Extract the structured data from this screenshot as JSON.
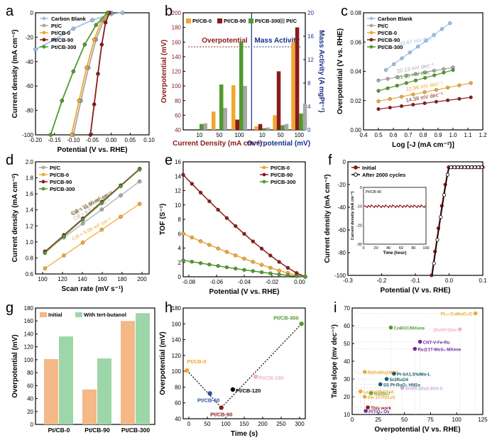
{
  "colors": {
    "carbon": "#9cc3ea",
    "ptc": "#a8a8a8",
    "cb0": "#f0a830",
    "cb90": "#8b1a1a",
    "cb300": "#4f9a2e",
    "blue": "#1a2f8a",
    "darkred": "#8b1a1a"
  },
  "chart_data": [
    {
      "panel": "a",
      "type": "line",
      "xlabel": "Potential (V vs. RHE)",
      "ylabel": "Current density (mA cm⁻²)",
      "xlim": [
        -0.2,
        0.1
      ],
      "ylim": [
        -100,
        0
      ],
      "xticks": [
        "-0.20",
        "-0.15",
        "-0.10",
        "-0.05",
        "0.00",
        "0.05",
        "0.10"
      ],
      "yticks": [
        "-100",
        "-80",
        "-60",
        "-40",
        "-20",
        "0"
      ],
      "series": [
        {
          "name": "Carbon Blank",
          "color": "#9cc3ea",
          "points": [
            [
              -0.2,
              -30
            ],
            [
              -0.15,
              -22
            ],
            [
              -0.1,
              -13
            ],
            [
              -0.05,
              -6
            ],
            [
              0,
              -1
            ],
            [
              0.03,
              0
            ]
          ]
        },
        {
          "name": "Pt/C",
          "color": "#a8a8a8",
          "points": [
            [
              -0.1,
              -100
            ],
            [
              -0.08,
              -72
            ],
            [
              -0.06,
              -45
            ],
            [
              -0.04,
              -22
            ],
            [
              -0.02,
              -6
            ],
            [
              0,
              0
            ]
          ]
        },
        {
          "name": "Pt/CB-0",
          "color": "#f0a830",
          "points": [
            [
              -0.105,
              -100
            ],
            [
              -0.085,
              -72
            ],
            [
              -0.065,
              -45
            ],
            [
              -0.045,
              -22
            ],
            [
              -0.025,
              -6
            ],
            [
              -0.005,
              0
            ]
          ]
        },
        {
          "name": "Pt/CB-90",
          "color": "#8b1a1a",
          "points": [
            [
              -0.055,
              -100
            ],
            [
              -0.045,
              -75
            ],
            [
              -0.035,
              -50
            ],
            [
              -0.025,
              -26
            ],
            [
              -0.015,
              -8
            ],
            [
              -0.005,
              0
            ]
          ]
        },
        {
          "name": "Pt/CB-300",
          "color": "#4f9a2e",
          "points": [
            [
              -0.16,
              -100
            ],
            [
              -0.13,
              -72
            ],
            [
              -0.1,
              -48
            ],
            [
              -0.07,
              -26
            ],
            [
              -0.04,
              -10
            ],
            [
              -0.01,
              0
            ]
          ]
        }
      ]
    },
    {
      "panel": "b",
      "type": "bar",
      "ylabel": "Overpotential (mV)",
      "ylabel_right": "Mass Activity (A mgPt⁻¹)",
      "xlabel_left": "Current Density (mA cm⁻²)",
      "xlabel_right": "Overpotential (mV)",
      "ylim": [
        40,
        200
      ],
      "ylim_right": [
        0,
        20
      ],
      "yticks": [
        "40",
        "60",
        "80",
        "100",
        "120",
        "140",
        "160",
        "180",
        "200"
      ],
      "yticks_right": [
        "0",
        "4",
        "8",
        "12",
        "16",
        "20"
      ],
      "annot_left": "Overpotential",
      "annot_right": "Mass Activity",
      "legend": [
        "Pt/CB-0",
        "Pt/CB-90",
        "Pt/CB-300",
        "Pt/C"
      ],
      "categories_left": [
        "10",
        "50",
        "100"
      ],
      "series_left": [
        {
          "name": "Pt/CB-0",
          "values": [
            37,
            65,
            101
          ]
        },
        {
          "name": "Pt/CB-90",
          "values": [
            26,
            40,
            54
          ]
        },
        {
          "name": "Pt/CB-300",
          "values": [
            48,
            102,
            160
          ]
        },
        {
          "name": "Pt/C",
          "values": [
            49,
            70,
            100
          ]
        }
      ],
      "categories_right": [
        "10",
        "50",
        "100"
      ],
      "series_right": [
        {
          "name": "Pt/CB-0",
          "values": [
            0.6,
            2.5,
            15
          ]
        },
        {
          "name": "Pt/CB-90",
          "values": [
            1.0,
            10,
            17.5
          ]
        },
        {
          "name": "Pt/CB-300",
          "values": [
            0.3,
            0.8,
            2.8
          ]
        },
        {
          "name": "Pt/C",
          "values": [
            0.4,
            1.0,
            4.5
          ]
        }
      ]
    },
    {
      "panel": "c",
      "type": "scatter",
      "xlabel": "Log [-J (mA cm⁻²)]",
      "ylabel": "Overpotential (V vs. RHE)",
      "xlim": [
        0.4,
        1.2
      ],
      "ylim": [
        0,
        0.09
      ],
      "xticks": [
        "0.4",
        "0.5",
        "0.6",
        "0.7",
        "0.8",
        "0.9",
        "1.0",
        "1.1",
        "1.2"
      ],
      "yticks": [
        "0.00",
        "0.02",
        "0.04",
        "0.06",
        "0.08"
      ],
      "series": [
        {
          "name": "Carbon Blank",
          "color": "#9cc3ea",
          "x0": 0.55,
          "x1": 0.98,
          "y0": 0.046,
          "y1": 0.082,
          "label": "83.67 mV dec⁻¹"
        },
        {
          "name": "Pt/C",
          "color": "#a8a8a8",
          "x0": 0.5,
          "x1": 1.0,
          "y0": 0.038,
          "y1": 0.048,
          "label": "20.13 mV dec⁻¹"
        },
        {
          "name": "Pt/CB-0",
          "color": "#f0a830",
          "x0": 0.5,
          "x1": 1.12,
          "y0": 0.022,
          "y1": 0.036,
          "label": "22.96 mV dec⁻¹"
        },
        {
          "name": "Pt/CB-90",
          "color": "#8b1a1a",
          "x0": 0.5,
          "x1": 1.12,
          "y0": 0.016,
          "y1": 0.025,
          "label": "14.38 mV dec⁻¹"
        },
        {
          "name": "Pt/CB-300",
          "color": "#4f9a2e",
          "x0": 0.5,
          "x1": 1.0,
          "y0": 0.03,
          "y1": 0.046,
          "label": "31.08 mV dec⁻¹"
        }
      ]
    },
    {
      "panel": "d",
      "type": "scatter",
      "xlabel": "Scan rate (mV s⁻¹)",
      "ylabel": "Current density (mA cm⁻²)",
      "xlim": [
        90,
        210
      ],
      "ylim": [
        0.5,
        2.1
      ],
      "xticks": [
        "100",
        "120",
        "140",
        "160",
        "180",
        "200"
      ],
      "yticks": [
        "0.6",
        "0.8",
        "1.0",
        "1.2",
        "1.4",
        "1.6",
        "1.8",
        "2.0"
      ],
      "x": [
        100,
        120,
        140,
        160,
        180,
        200
      ],
      "series": [
        {
          "name": "Pt/C",
          "color": "#a8a8a8",
          "y0": 0.82,
          "y1": 1.82,
          "label": "Cdl = 9.8 mF cm⁻²"
        },
        {
          "name": "Pt/CB-0",
          "color": "#f0a830",
          "y0": 0.58,
          "y1": 1.5,
          "label": "Cdl = 9.06 mF cm⁻²"
        },
        {
          "name": "Pt/CB-90",
          "color": "#8b1a1a",
          "y0": 0.82,
          "y1": 2.0,
          "label": "Cdl = 11.68 mF cm⁻²"
        },
        {
          "name": "Pt/CB-300",
          "color": "#4f9a2e",
          "y0": 0.8,
          "y1": 1.99,
          "label": "Cdl = 11.9 mF cm⁻²"
        }
      ]
    },
    {
      "panel": "e",
      "type": "line",
      "xlabel": "Potential (V vs. RHE)",
      "ylabel": "TOF (S⁻¹)",
      "xlim": [
        -0.09,
        0.0
      ],
      "ylim": [
        0,
        16
      ],
      "xticks": [
        "-0.08",
        "-0.06",
        "-0.04",
        "-0.02",
        "0.00"
      ],
      "yticks": [
        "0",
        "2",
        "4",
        "6",
        "8",
        "10",
        "12",
        "14",
        "16"
      ],
      "series": [
        {
          "name": "Pt/CB-0",
          "color": "#f0a830",
          "y_start": 6.0
        },
        {
          "name": "Pt/CB-90",
          "color": "#8b1a1a",
          "y_start": 14.2
        },
        {
          "name": "Pt/CB-300",
          "color": "#4f9a2e",
          "y_start": 2.3
        }
      ]
    },
    {
      "panel": "f",
      "type": "line",
      "xlabel": "Potential (V vs. RHE)",
      "ylabel": "Current density (mA cm⁻²)",
      "xlim": [
        -0.3,
        0.1
      ],
      "ylim": [
        -100,
        5
      ],
      "xticks": [
        "-0.3",
        "-0.2",
        "-0.1",
        "0.0",
        "0.1"
      ],
      "yticks": [
        "-100",
        "-80",
        "-60",
        "-40",
        "-20",
        "0"
      ],
      "series": [
        {
          "name": "Initial",
          "color": "#8b1a1a"
        },
        {
          "name": "After 2000 cycles",
          "color": "#000000"
        }
      ],
      "inset": {
        "title": "Pt/CB-90",
        "xlabel": "Time (hour)",
        "ylabel": "Current density (mA cm⁻²)",
        "xticks": [
          "0",
          "20",
          "40",
          "60",
          "80",
          "100"
        ],
        "yticks": [
          "-30",
          "-20",
          "-10",
          "0"
        ],
        "value": -10
      }
    },
    {
      "panel": "g",
      "type": "bar",
      "ylabel": "Overpotential (mV)",
      "ylim": [
        0,
        180
      ],
      "yticks": [
        "0",
        "20",
        "40",
        "60",
        "80",
        "100",
        "120",
        "140",
        "160",
        "180"
      ],
      "categories": [
        "Pt/CB-0",
        "Pt/CB-90",
        "Pt/CB-300"
      ],
      "series": [
        {
          "name": "Initial",
          "values": [
            101,
            54,
            160
          ]
        },
        {
          "name": "With tert-butanol",
          "values": [
            136,
            102,
            172
          ]
        }
      ]
    },
    {
      "panel": "h",
      "type": "scatter",
      "xlabel": "Time (s)",
      "ylabel": "Overpotential (mV)",
      "xlim": [
        -10,
        310
      ],
      "ylim": [
        40,
        180
      ],
      "xticks": [
        "0",
        "50",
        "100",
        "150",
        "200",
        "250",
        "300"
      ],
      "yticks": [
        "40",
        "60",
        "80",
        "100",
        "120",
        "140",
        "160",
        "180"
      ],
      "points": [
        {
          "name": "Pt/CB-0",
          "x": 0,
          "y": 101,
          "color": "#f0a830"
        },
        {
          "name": "Pt/CB-60",
          "x": 60,
          "y": 72,
          "color": "#2d4fa0"
        },
        {
          "name": "Pt/CB-90",
          "x": 90,
          "y": 54,
          "color": "#8b1a1a"
        },
        {
          "name": "Pt/CB-120",
          "x": 120,
          "y": 77,
          "color": "#000000"
        },
        {
          "name": "Pt/CB-180",
          "x": 180,
          "y": 93,
          "color": "#f0b4d4"
        },
        {
          "name": "Pt/CB-300",
          "x": 300,
          "y": 160,
          "color": "#4f9a2e"
        }
      ]
    },
    {
      "panel": "i",
      "type": "scatter",
      "xlabel": "Overpotential (V vs. RHE)",
      "ylabel": "Tafel slope (mv dec⁻¹)",
      "xlim": [
        0,
        125
      ],
      "ylim": [
        10,
        70
      ],
      "xticks": [
        "0",
        "25",
        "50",
        "75",
        "100",
        "125"
      ],
      "yticks": [
        "10",
        "20",
        "30",
        "40",
        "50",
        "60",
        "70"
      ],
      "points": [
        {
          "name": "Pt₂₅-CoMoO₄/C",
          "x": 118,
          "y": 67,
          "color": "#f0a830"
        },
        {
          "name": "CoBOC/MXene",
          "x": 37,
          "y": 59,
          "color": "#4f9a2e"
        },
        {
          "name": "(RuWV)Sex",
          "x": 103,
          "y": 58,
          "color": "#f0b4d4"
        },
        {
          "name": "CNT-V-Fe-Ru",
          "x": 65,
          "y": 51,
          "color": "#6a2a9a"
        },
        {
          "name": "Ru@1T-MoS₂-MXene",
          "x": 60,
          "y": 47,
          "color": "#6a2a9a"
        },
        {
          "name": "RhPxRh@NPG",
          "x": 12,
          "y": 34,
          "color": "#f0a830"
        },
        {
          "name": "Pt-SA1.5%/Mo-L",
          "x": 40,
          "y": 33,
          "color": "#1a5a6a"
        },
        {
          "name": "Sr2RuO4",
          "x": 33,
          "y": 30,
          "color": "#1a5a6a"
        },
        {
          "name": "SS Pt-RuO₂ HNSs",
          "x": 27,
          "y": 27,
          "color": "#1a5a6a"
        },
        {
          "name": "SrHf0.1Ru0.9O3-δ",
          "x": 48,
          "y": 25,
          "color": "#c8a8e0"
        },
        {
          "name": "La2Sr2PtO7+δ",
          "x": 8,
          "y": 23,
          "color": "#f0a830"
        },
        {
          "name": "Ru3Sn7",
          "x": 18,
          "y": 22,
          "color": "#7aa030"
        },
        {
          "name": "5% 1T-PtO₂/C",
          "x": 12,
          "y": 20,
          "color": "#f0a830"
        },
        {
          "name": "This work",
          "x": 15,
          "y": 14,
          "color": "#8b1a1a"
        },
        {
          "name": "PtTiO₂-Ov",
          "x": 13,
          "y": 12,
          "color": "#6a2a9a"
        }
      ]
    }
  ]
}
